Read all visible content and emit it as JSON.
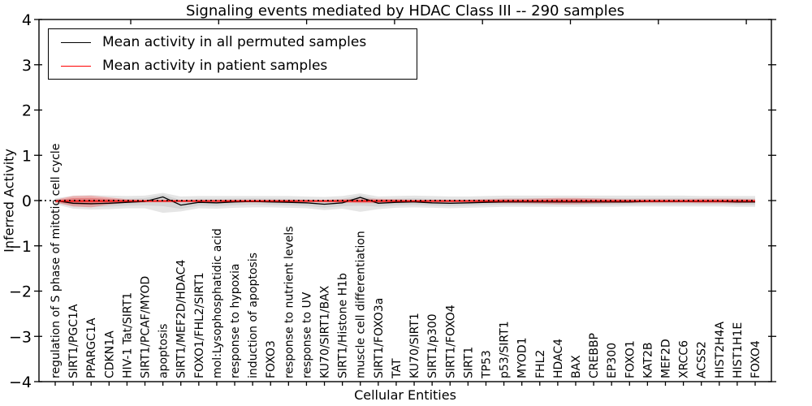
{
  "chart_data": {
    "type": "line",
    "title": "Signaling events mediated by HDAC Class III -- 290 samples",
    "xlabel": "Cellular Entities",
    "ylabel": "Inferred Activity",
    "ylim": [
      -4,
      4
    ],
    "yticks": [
      4,
      3,
      2,
      1,
      0,
      -1,
      -2,
      -3,
      -4
    ],
    "grid": false,
    "legend_position": "upper left",
    "zero_line": {
      "y": 0,
      "style": "dotted",
      "color": "#000000"
    },
    "categories": [
      "regulation of S phase of mitotic cell cycle",
      "SIRT1/PGC1A",
      "PPARGC1A",
      "CDKN1A",
      "HIV-1 Tat/SIRT1",
      "SIRT1/PCAF/MYOD",
      "apoptosis",
      "SIRT1/MEF2D/HDAC4",
      "FOXO1/FHL2/SIRT1",
      "mol:Lysophosphatidic acid",
      "response to hypoxia",
      "induction of apoptosis",
      "FOXO3",
      "response to nutrient levels",
      "response to UV",
      "KU70/SIRT1/BAX",
      "SIRT1/Histone H1b",
      "muscle cell differentiation",
      "SIRT1/FOXO3a",
      "TAT",
      "KU70/SIRT1",
      "SIRT1/p300",
      "SIRT1/FOXO4",
      "SIRT1",
      "TP53",
      "p53/SIRT1",
      "MYOD1",
      "FHL2",
      "HDAC4",
      "BAX",
      "CREBBP",
      "EP300",
      "FOXO1",
      "KAT2B",
      "MEF2D",
      "XRCC6",
      "ACSS2",
      "HIST2H4A",
      "HIST1H1E",
      "FOXO4"
    ],
    "series": [
      {
        "name": "Mean activity in all permuted samples",
        "color": "#000000",
        "band_color": "#d9d9d9",
        "values": [
          0.0,
          -0.06,
          -0.07,
          -0.06,
          -0.04,
          -0.02,
          0.08,
          -0.1,
          -0.04,
          -0.05,
          -0.03,
          -0.02,
          -0.03,
          -0.04,
          -0.05,
          -0.08,
          -0.05,
          0.07,
          -0.06,
          -0.04,
          -0.03,
          -0.05,
          -0.06,
          -0.05,
          -0.04,
          -0.03,
          -0.03,
          -0.03,
          -0.03,
          -0.03,
          -0.03,
          -0.03,
          -0.03,
          -0.02,
          -0.02,
          -0.02,
          -0.02,
          -0.02,
          -0.03,
          -0.03
        ],
        "band_upper": [
          0.05,
          0.11,
          0.12,
          0.11,
          0.1,
          0.11,
          0.17,
          0.09,
          0.1,
          0.1,
          0.1,
          0.1,
          0.1,
          0.1,
          0.09,
          0.08,
          0.1,
          0.16,
          0.09,
          0.1,
          0.11,
          0.1,
          0.09,
          0.09,
          0.1,
          0.11,
          0.11,
          0.11,
          0.11,
          0.11,
          0.11,
          0.11,
          0.11,
          0.11,
          0.11,
          0.11,
          0.1,
          0.1,
          0.1,
          0.1
        ],
        "band_lower": [
          -0.08,
          -0.18,
          -0.2,
          -0.19,
          -0.17,
          -0.17,
          -0.27,
          -0.24,
          -0.17,
          -0.18,
          -0.16,
          -0.15,
          -0.15,
          -0.16,
          -0.17,
          -0.21,
          -0.18,
          -0.25,
          -0.19,
          -0.16,
          -0.15,
          -0.16,
          -0.17,
          -0.16,
          -0.15,
          -0.14,
          -0.14,
          -0.14,
          -0.14,
          -0.14,
          -0.14,
          -0.14,
          -0.13,
          -0.13,
          -0.13,
          -0.13,
          -0.13,
          -0.13,
          -0.14,
          -0.14
        ]
      },
      {
        "name": "Mean activity in patient samples",
        "color": "#ff0000",
        "band_color": "#f4a0a0",
        "values": [
          -0.01,
          -0.01,
          -0.01,
          -0.01,
          -0.01,
          -0.01,
          -0.01,
          -0.01,
          -0.01,
          -0.01,
          -0.01,
          -0.01,
          -0.01,
          -0.01,
          -0.01,
          -0.01,
          -0.01,
          -0.01,
          -0.01,
          -0.01,
          -0.01,
          -0.01,
          -0.01,
          -0.01,
          -0.01,
          -0.01,
          -0.01,
          -0.01,
          -0.01,
          -0.01,
          -0.01,
          -0.01,
          -0.01,
          -0.01,
          -0.01,
          -0.01,
          -0.01,
          -0.01,
          -0.01,
          -0.01
        ],
        "band_upper": [
          0.02,
          0.1,
          0.11,
          0.07,
          0.03,
          0.02,
          0.02,
          0.02,
          0.02,
          0.02,
          0.02,
          0.02,
          0.02,
          0.02,
          0.02,
          0.02,
          0.03,
          0.04,
          0.04,
          0.03,
          0.02,
          0.02,
          0.02,
          0.02,
          0.03,
          0.04,
          0.04,
          0.05,
          0.06,
          0.06,
          0.05,
          0.04,
          0.03,
          0.03,
          0.03,
          0.03,
          0.04,
          0.04,
          0.04,
          0.03
        ],
        "band_lower": [
          -0.04,
          -0.13,
          -0.15,
          -0.09,
          -0.05,
          -0.04,
          -0.04,
          -0.04,
          -0.04,
          -0.04,
          -0.04,
          -0.04,
          -0.04,
          -0.04,
          -0.04,
          -0.04,
          -0.05,
          -0.06,
          -0.06,
          -0.05,
          -0.04,
          -0.04,
          -0.04,
          -0.04,
          -0.05,
          -0.06,
          -0.06,
          -0.07,
          -0.08,
          -0.08,
          -0.07,
          -0.06,
          -0.05,
          -0.05,
          -0.05,
          -0.05,
          -0.06,
          -0.06,
          -0.06,
          -0.05
        ]
      }
    ]
  }
}
